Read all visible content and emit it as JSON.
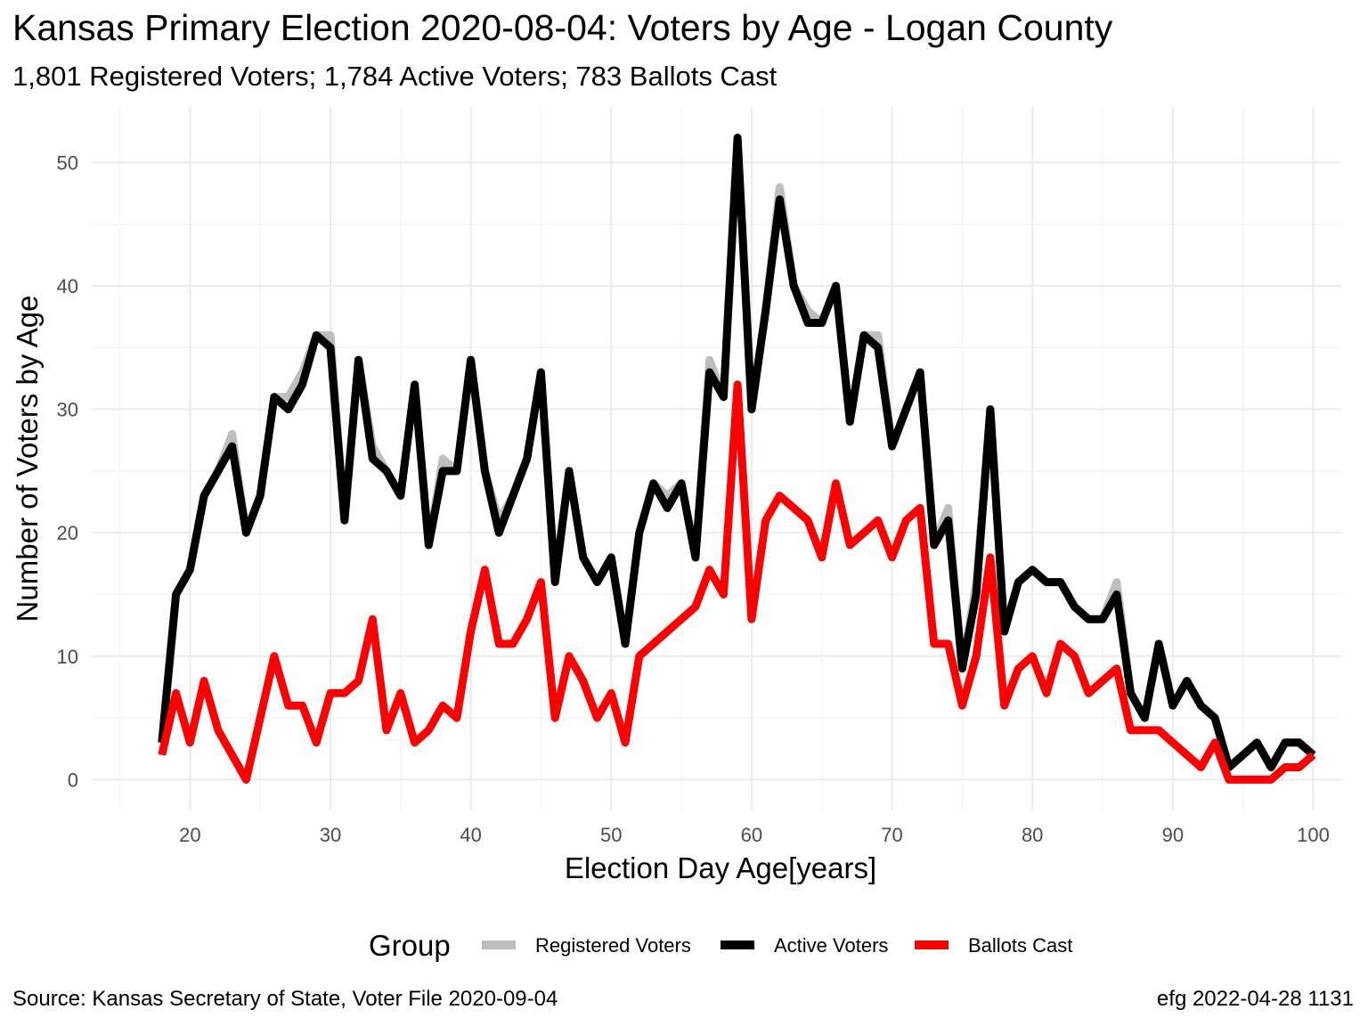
{
  "caption": {
    "source": "Source:  Kansas Secretary of State, Voter File  2020-09-04",
    "credit": "efg 2022-04-28 1131"
  },
  "chart_data": {
    "type": "line",
    "title": "Kansas Primary Election 2020-08-04:  Voters by Age - Logan County",
    "subtitle": "1,801 Registered Voters; 1,784 Active Voters; 783 Ballots Cast",
    "xlabel": "Election Day Age[years]",
    "ylabel": "Number of Voters by Age",
    "xlim": [
      13,
      102
    ],
    "ylim": [
      -2.5,
      54.5
    ],
    "x_ticks": [
      20,
      30,
      40,
      50,
      60,
      70,
      80,
      90,
      100
    ],
    "y_ticks": [
      0,
      10,
      20,
      30,
      40,
      50
    ],
    "grid": true,
    "legend": {
      "title": "Group",
      "position": "bottom"
    },
    "x": [
      18,
      19,
      20,
      21,
      22,
      23,
      24,
      25,
      26,
      27,
      28,
      29,
      30,
      31,
      32,
      33,
      34,
      35,
      36,
      37,
      38,
      39,
      40,
      41,
      42,
      43,
      44,
      45,
      46,
      47,
      48,
      49,
      50,
      51,
      52,
      53,
      54,
      55,
      56,
      57,
      58,
      59,
      60,
      61,
      62,
      63,
      64,
      65,
      66,
      67,
      68,
      69,
      70,
      71,
      72,
      73,
      74,
      75,
      76,
      77,
      78,
      79,
      80,
      81,
      82,
      83,
      84,
      85,
      86,
      87,
      88,
      89,
      90,
      91,
      92,
      93,
      94,
      95,
      96,
      97,
      98,
      99,
      100
    ],
    "series": [
      {
        "name": "Registered Voters",
        "color": "#bebebe",
        "values": [
          3,
          15,
          17,
          23,
          25,
          28,
          20,
          23,
          31,
          31,
          33,
          36,
          36,
          21,
          34,
          27,
          25,
          23,
          32,
          19,
          26,
          25,
          34,
          25,
          21,
          23,
          26,
          33,
          16,
          25,
          18,
          16,
          18,
          11,
          20,
          24,
          23,
          24,
          18,
          34,
          31,
          52,
          30,
          38,
          48,
          40,
          38,
          37,
          40,
          29,
          36,
          36,
          27,
          30,
          33,
          19,
          22,
          9,
          16,
          30,
          12,
          16,
          17,
          16,
          16,
          14,
          13,
          13,
          16,
          7,
          5,
          11,
          6,
          8,
          6,
          5,
          1,
          2,
          3,
          1,
          3,
          3,
          2
        ]
      },
      {
        "name": "Active Voters",
        "color": "#000000",
        "values": [
          3,
          15,
          17,
          23,
          25,
          27,
          20,
          23,
          31,
          30,
          32,
          36,
          35,
          21,
          34,
          26,
          25,
          23,
          32,
          19,
          25,
          25,
          34,
          25,
          20,
          23,
          26,
          33,
          16,
          25,
          18,
          16,
          18,
          11,
          20,
          24,
          22,
          24,
          18,
          33,
          31,
          52,
          30,
          38,
          47,
          40,
          37,
          37,
          40,
          29,
          36,
          35,
          27,
          30,
          33,
          19,
          21,
          9,
          15,
          30,
          12,
          16,
          17,
          16,
          16,
          14,
          13,
          13,
          15,
          7,
          5,
          11,
          6,
          8,
          6,
          5,
          1,
          2,
          3,
          1,
          3,
          3,
          2
        ]
      },
      {
        "name": "Ballots Cast",
        "color": "#ff0000",
        "values": [
          2,
          7,
          3,
          8,
          4,
          2,
          0,
          5,
          10,
          6,
          6,
          3,
          7,
          7,
          8,
          13,
          4,
          7,
          3,
          4,
          6,
          5,
          12,
          17,
          11,
          11,
          13,
          16,
          5,
          10,
          8,
          5,
          7,
          3,
          10,
          11,
          12,
          13,
          14,
          17,
          15,
          32,
          13,
          21,
          23,
          22,
          21,
          18,
          24,
          19,
          20,
          21,
          18,
          21,
          22,
          11,
          11,
          6,
          10,
          18,
          6,
          9,
          10,
          7,
          11,
          10,
          7,
          8,
          9,
          4,
          4,
          4,
          3,
          2,
          1,
          3,
          0,
          0,
          0,
          0,
          1,
          1,
          2
        ]
      }
    ]
  }
}
